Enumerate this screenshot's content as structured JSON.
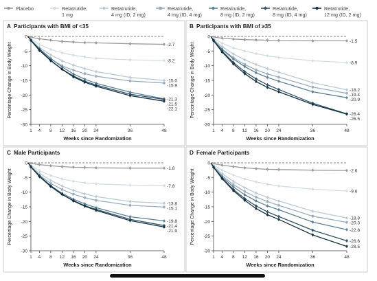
{
  "legend": [
    {
      "label": "Placebo",
      "color": "#9a9a9a",
      "marker": "circle"
    },
    {
      "label": "Retatrutide,\n1 mg",
      "color": "#d2dde6",
      "marker": "circle"
    },
    {
      "label": "Retatrutide,\n4 mg (ID, 2 mg)",
      "color": "#bccad6",
      "marker": "diamond"
    },
    {
      "label": "Retatrutide,\n4 mg (ID, 4 mg)",
      "color": "#98adbf",
      "marker": "square"
    },
    {
      "label": "Retatrutide,\n8 mg (ID, 2 mg)",
      "color": "#5c8095",
      "marker": "circle"
    },
    {
      "label": "Retatrutide,\n8 mg (ID, 4 mg)",
      "color": "#2f5266",
      "marker": "diamond"
    },
    {
      "label": "Retatrutide,\n12 mg (ID, 2 mg)",
      "color": "#14303f",
      "marker": "circle"
    }
  ],
  "chart_data": [
    {
      "type": "line",
      "panel_letter": "A",
      "title": "Participants with BMI of <35",
      "xlabel": "Weeks since Randomization",
      "ylabel": "Percentage Change in Body Weight",
      "x": [
        1,
        4,
        8,
        12,
        16,
        20,
        24,
        36,
        48
      ],
      "xticks": [
        1,
        4,
        8,
        12,
        16,
        20,
        24,
        36,
        48
      ],
      "yticks": [
        0,
        -5,
        -10,
        -15,
        -20,
        -25,
        -30
      ],
      "ylim": [
        -30,
        0
      ],
      "series": [
        {
          "name": "Placebo",
          "values": [
            -0.3,
            -0.8,
            -1.3,
            -1.7,
            -1.9,
            -2.1,
            -2.2,
            -2.5,
            -2.7
          ],
          "end_label": "-2.7"
        },
        {
          "name": "Retatrutide, 1 mg",
          "values": [
            -0.8,
            -2.8,
            -4.4,
            -5.6,
            -6.4,
            -7.0,
            -7.5,
            -8.0,
            -8.2
          ],
          "end_label": "-8.2"
        },
        {
          "name": "Retatrutide, 4 mg (ID, 2 mg)",
          "values": [
            -1.2,
            -3.8,
            -6.3,
            -8.3,
            -9.8,
            -11.0,
            -12.0,
            -14.0,
            -15.0
          ],
          "end_label": "-15.0"
        },
        {
          "name": "Retatrutide, 4 mg (ID, 4 mg)",
          "values": [
            -1.4,
            -4.6,
            -7.8,
            -10.0,
            -11.5,
            -12.7,
            -13.6,
            -15.2,
            -15.9
          ],
          "end_label": "-15.9"
        },
        {
          "name": "Retatrutide, 8 mg (ID, 2 mg)",
          "values": [
            -1.3,
            -4.2,
            -7.5,
            -10.4,
            -12.8,
            -14.6,
            -16.0,
            -19.0,
            -21.3
          ],
          "end_label": "-21.3"
        },
        {
          "name": "Retatrutide, 8 mg (ID, 4 mg)",
          "values": [
            -1.4,
            -4.8,
            -8.3,
            -11.2,
            -13.5,
            -15.3,
            -16.6,
            -19.7,
            -21.5
          ],
          "end_label": "-21.5"
        },
        {
          "name": "Retatrutide, 12 mg (ID, 2 mg)",
          "values": [
            -1.3,
            -4.6,
            -8.2,
            -11.2,
            -13.8,
            -15.6,
            -17.0,
            -20.2,
            -22.1
          ],
          "end_label": "-22.1"
        }
      ]
    },
    {
      "type": "line",
      "panel_letter": "B",
      "title": "Participants with BMI of ≥35",
      "xlabel": "Weeks since Randomization",
      "ylabel": "Percentage Change in Body Weight",
      "x": [
        1,
        4,
        8,
        12,
        16,
        20,
        24,
        36,
        48
      ],
      "xticks": [
        1,
        4,
        8,
        12,
        16,
        20,
        24,
        36,
        48
      ],
      "yticks": [
        0,
        -5,
        -10,
        -15,
        -20,
        -25,
        -30
      ],
      "ylim": [
        -30,
        0
      ],
      "series": [
        {
          "name": "Placebo",
          "values": [
            -0.2,
            -0.6,
            -0.9,
            -1.1,
            -1.2,
            -1.3,
            -1.4,
            -1.5,
            -1.5
          ],
          "end_label": "-1.5"
        },
        {
          "name": "Retatrutide, 1 mg",
          "values": [
            -0.7,
            -2.3,
            -3.9,
            -5.0,
            -5.9,
            -6.6,
            -7.2,
            -8.3,
            -8.9
          ],
          "end_label": "-8.9"
        },
        {
          "name": "Retatrutide, 4 mg (ID, 2 mg)",
          "values": [
            -1.1,
            -3.5,
            -6.0,
            -8.0,
            -9.6,
            -11.0,
            -12.2,
            -15.8,
            -18.2
          ],
          "end_label": "-18.2"
        },
        {
          "name": "Retatrutide, 4 mg (ID, 4 mg)",
          "values": [
            -1.3,
            -4.3,
            -7.3,
            -9.6,
            -11.4,
            -12.8,
            -13.9,
            -17.3,
            -19.4
          ],
          "end_label": "-19.4"
        },
        {
          "name": "Retatrutide, 8 mg (ID, 2 mg)",
          "values": [
            -1.3,
            -4.4,
            -7.7,
            -10.3,
            -12.4,
            -14.0,
            -15.3,
            -18.9,
            -20.9
          ],
          "end_label": "-20.9"
        },
        {
          "name": "Retatrutide, 8 mg (ID, 4 mg)",
          "values": [
            -1.4,
            -5.0,
            -8.9,
            -12.0,
            -14.5,
            -16.5,
            -18.1,
            -22.8,
            -26.4
          ],
          "end_label": "-26.4"
        },
        {
          "name": "Retatrutide, 12 mg (ID, 2 mg)",
          "values": [
            -1.5,
            -5.3,
            -9.4,
            -12.7,
            -15.4,
            -17.4,
            -18.9,
            -23.2,
            -26.5
          ],
          "end_label": "-26.5"
        }
      ]
    },
    {
      "type": "line",
      "panel_letter": "C",
      "title": "Male Participants",
      "xlabel": "Weeks since Randomization",
      "ylabel": "Percentage Change in Body Weight",
      "x": [
        1,
        4,
        8,
        12,
        16,
        20,
        24,
        36,
        48
      ],
      "xticks": [
        1,
        4,
        8,
        12,
        16,
        20,
        24,
        36,
        48
      ],
      "yticks": [
        0,
        -5,
        -10,
        -15,
        -20,
        -25,
        -30
      ],
      "ylim": [
        -30,
        0
      ],
      "series": [
        {
          "name": "Placebo",
          "values": [
            -0.2,
            -0.6,
            -1.0,
            -1.3,
            -1.5,
            -1.6,
            -1.7,
            -1.8,
            -1.8
          ],
          "end_label": "-1.8"
        },
        {
          "name": "Retatrutide, 1 mg",
          "values": [
            -0.8,
            -2.7,
            -4.3,
            -5.5,
            -6.3,
            -6.8,
            -7.2,
            -7.6,
            -7.8
          ],
          "end_label": "-7.8"
        },
        {
          "name": "Retatrutide, 4 mg (ID, 2 mg)",
          "values": [
            -1.1,
            -3.6,
            -6.0,
            -7.9,
            -9.4,
            -10.6,
            -11.5,
            -13.2,
            -13.8
          ],
          "end_label": "-13.8"
        },
        {
          "name": "Retatrutide, 4 mg (ID, 4 mg)",
          "values": [
            -1.3,
            -4.2,
            -7.0,
            -9.1,
            -10.7,
            -11.9,
            -12.8,
            -14.5,
            -15.1
          ],
          "end_label": "-15.1"
        },
        {
          "name": "Retatrutide, 8 mg (ID, 2 mg)",
          "values": [
            -1.4,
            -4.5,
            -7.8,
            -10.4,
            -12.4,
            -14.0,
            -15.3,
            -18.4,
            -19.8
          ],
          "end_label": "-19.8"
        },
        {
          "name": "Retatrutide, 8 mg (ID, 4 mg)",
          "values": [
            -1.4,
            -4.7,
            -8.1,
            -10.8,
            -12.9,
            -14.6,
            -15.9,
            -19.3,
            -21.4
          ],
          "end_label": "-21.4"
        },
        {
          "name": "Retatrutide, 12 mg (ID, 2 mg)",
          "values": [
            -1.3,
            -4.5,
            -7.9,
            -10.7,
            -13.0,
            -14.8,
            -16.2,
            -19.7,
            -21.9
          ],
          "end_label": "-21.9"
        }
      ]
    },
    {
      "type": "line",
      "panel_letter": "D",
      "title": "Female Participants",
      "xlabel": "Weeks since Randomization",
      "ylabel": "Percentage Change in Body Weight",
      "x": [
        1,
        4,
        8,
        12,
        16,
        20,
        24,
        36,
        48
      ],
      "xticks": [
        1,
        4,
        8,
        12,
        16,
        20,
        24,
        36,
        48
      ],
      "yticks": [
        0,
        -5,
        -10,
        -15,
        -20,
        -25,
        -30
      ],
      "ylim": [
        -30,
        0
      ],
      "series": [
        {
          "name": "Placebo",
          "values": [
            -0.3,
            -0.8,
            -1.3,
            -1.7,
            -2.0,
            -2.2,
            -2.3,
            -2.5,
            -2.6
          ],
          "end_label": "-2.6"
        },
        {
          "name": "Retatrutide, 1 mg",
          "values": [
            -0.7,
            -2.5,
            -4.2,
            -5.5,
            -6.5,
            -7.3,
            -7.9,
            -9.0,
            -9.6
          ],
          "end_label": "-9.6"
        },
        {
          "name": "Retatrutide, 4 mg (ID, 2 mg)",
          "values": [
            -1.1,
            -3.7,
            -6.3,
            -8.5,
            -10.3,
            -11.8,
            -13.0,
            -16.5,
            -18.8
          ],
          "end_label": "-18.8"
        },
        {
          "name": "Retatrutide, 4 mg (ID, 4 mg)",
          "values": [
            -1.3,
            -4.4,
            -7.4,
            -9.8,
            -11.7,
            -13.2,
            -14.5,
            -18.2,
            -20.3
          ],
          "end_label": "-20.3"
        },
        {
          "name": "Retatrutide, 8 mg (ID, 2 mg)",
          "values": [
            -1.4,
            -4.8,
            -8.2,
            -10.9,
            -13.0,
            -14.7,
            -16.0,
            -20.2,
            -22.8
          ],
          "end_label": "-22.8"
        },
        {
          "name": "Retatrutide, 8 mg (ID, 4 mg)",
          "values": [
            -1.5,
            -5.2,
            -9.1,
            -12.2,
            -14.7,
            -16.7,
            -18.3,
            -23.0,
            -26.6
          ],
          "end_label": "-26.6"
        },
        {
          "name": "Retatrutide, 12 mg (ID, 2 mg)",
          "values": [
            -1.5,
            -5.4,
            -9.5,
            -12.8,
            -15.6,
            -17.7,
            -19.3,
            -24.6,
            -28.5
          ],
          "end_label": "-28.5"
        }
      ]
    }
  ]
}
